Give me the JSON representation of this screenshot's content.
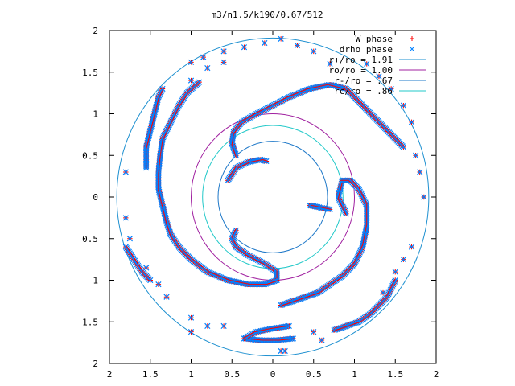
{
  "chart_data": {
    "type": "scatter",
    "title": "m3/n1.5/k190/0.67/512",
    "xlim": [
      -2,
      2
    ],
    "ylim": [
      -2,
      2
    ],
    "x_tick_values": [
      -2,
      -1.5,
      -1,
      -0.5,
      0,
      0.5,
      1,
      1.5,
      2
    ],
    "x_tick_labels": [
      "2",
      "1.5",
      "1",
      "0.5",
      "0",
      "0.5",
      "1",
      "1.5",
      "2"
    ],
    "y_tick_values": [
      2,
      1.5,
      1,
      0.5,
      0,
      -0.5,
      -1,
      -1.5,
      -2
    ],
    "y_tick_labels": [
      "2",
      "1.5",
      "1",
      "0.5",
      "0",
      "0.5",
      "1",
      "1.5",
      "2"
    ],
    "grid": false,
    "legend_position": "top-right",
    "point_series": [
      {
        "name": "W phase",
        "marker": "plus",
        "color": "#ff0000"
      },
      {
        "name": "drho phase",
        "marker": "cross",
        "color": "#0080ff"
      }
    ],
    "circles": [
      {
        "name": "r+/ro = 1.91",
        "radius": 1.91,
        "color": "#1e90d0"
      },
      {
        "name": "ro/ro = 1.00",
        "radius": 1.0,
        "color": "#a020a0"
      },
      {
        "name": "r-/ro = .67",
        "radius": 0.67,
        "color": "#1e78c8"
      },
      {
        "name": "rc/ro = .86",
        "radius": 0.86,
        "color": "#20c8c8"
      }
    ],
    "arms": [
      {
        "points": [
          [
            -0.45,
            0.5
          ],
          [
            -0.5,
            0.65
          ],
          [
            -0.48,
            0.78
          ],
          [
            -0.38,
            0.9
          ],
          [
            -0.2,
            1.0
          ],
          [
            0.0,
            1.1
          ],
          [
            0.2,
            1.2
          ],
          [
            0.45,
            1.3
          ],
          [
            0.7,
            1.35
          ],
          [
            0.9,
            1.3
          ],
          [
            1.05,
            1.15
          ],
          [
            1.2,
            1.0
          ],
          [
            1.35,
            0.85
          ],
          [
            1.5,
            0.7
          ],
          [
            1.6,
            0.6
          ]
        ]
      },
      {
        "points": [
          [
            0.7,
            -0.15
          ],
          [
            0.55,
            -0.12
          ],
          [
            0.45,
            -0.1
          ]
        ]
      },
      {
        "points": [
          [
            0.9,
            -0.2
          ],
          [
            0.8,
            0.0
          ],
          [
            0.85,
            0.2
          ],
          [
            0.95,
            0.2
          ],
          [
            1.05,
            0.1
          ],
          [
            1.15,
            -0.1
          ],
          [
            1.15,
            -0.35
          ],
          [
            1.1,
            -0.6
          ],
          [
            1.0,
            -0.8
          ],
          [
            0.85,
            -0.95
          ],
          [
            0.7,
            -1.05
          ],
          [
            0.55,
            -1.15
          ],
          [
            0.4,
            -1.2
          ],
          [
            0.25,
            -1.25
          ],
          [
            0.1,
            -1.3
          ]
        ]
      },
      {
        "points": [
          [
            0.25,
            -1.7
          ],
          [
            0.05,
            -1.72
          ],
          [
            -0.15,
            -1.72
          ],
          [
            -0.35,
            -1.7
          ]
        ]
      },
      {
        "points": [
          [
            -0.35,
            -1.7
          ],
          [
            -0.2,
            -1.62
          ],
          [
            0.0,
            -1.58
          ],
          [
            0.2,
            -1.55
          ]
        ]
      },
      {
        "points": [
          [
            -1.55,
            0.35
          ],
          [
            -1.55,
            0.6
          ],
          [
            -1.5,
            0.8
          ],
          [
            -1.45,
            1.0
          ],
          [
            -1.4,
            1.2
          ],
          [
            -1.35,
            1.3
          ]
        ]
      },
      {
        "points": [
          [
            -0.08,
            0.43
          ],
          [
            -0.15,
            0.45
          ],
          [
            -0.3,
            0.42
          ],
          [
            -0.45,
            0.35
          ],
          [
            -0.55,
            0.2
          ]
        ]
      },
      {
        "points": [
          [
            -0.45,
            -0.4
          ],
          [
            -0.5,
            -0.5
          ],
          [
            -0.45,
            -0.6
          ],
          [
            -0.3,
            -0.7
          ],
          [
            -0.1,
            -0.8
          ],
          [
            0.05,
            -0.9
          ],
          [
            0.05,
            -1.0
          ]
        ]
      },
      {
        "points": [
          [
            0.05,
            -1.0
          ],
          [
            -0.1,
            -1.05
          ],
          [
            -0.3,
            -1.05
          ],
          [
            -0.55,
            -1.0
          ],
          [
            -0.8,
            -0.9
          ],
          [
            -1.0,
            -0.75
          ],
          [
            -1.15,
            -0.6
          ],
          [
            -1.25,
            -0.45
          ],
          [
            -1.3,
            -0.3
          ],
          [
            -1.35,
            -0.1
          ],
          [
            -1.4,
            0.1
          ],
          [
            -1.4,
            0.3
          ],
          [
            -1.38,
            0.5
          ],
          [
            -1.35,
            0.7
          ],
          [
            -1.25,
            0.9
          ],
          [
            -1.15,
            1.1
          ],
          [
            -1.05,
            1.25
          ],
          [
            -0.9,
            1.38
          ]
        ]
      },
      {
        "points": [
          [
            -1.8,
            -0.6
          ],
          [
            -1.7,
            -0.75
          ],
          [
            -1.6,
            -0.9
          ],
          [
            -1.5,
            -1.0
          ]
        ]
      },
      {
        "points": [
          [
            1.5,
            -1.0
          ],
          [
            1.45,
            -1.1
          ],
          [
            1.4,
            -1.2
          ],
          [
            1.3,
            -1.3
          ],
          [
            1.2,
            -1.4
          ],
          [
            1.05,
            -1.5
          ],
          [
            0.9,
            -1.55
          ],
          [
            0.75,
            -1.6
          ]
        ]
      }
    ],
    "scattered_points": [
      [
        0.1,
        1.9
      ],
      [
        -0.1,
        1.85
      ],
      [
        -0.35,
        1.8
      ],
      [
        -0.6,
        1.75
      ],
      [
        -0.85,
        1.68
      ],
      [
        -1.0,
        1.62
      ],
      [
        -1.0,
        1.4
      ],
      [
        -0.8,
        1.55
      ],
      [
        -0.6,
        1.62
      ],
      [
        -1.8,
        0.3
      ],
      [
        -1.8,
        -0.25
      ],
      [
        -1.75,
        -0.5
      ],
      [
        -1.55,
        -0.85
      ],
      [
        -1.4,
        -1.05
      ],
      [
        -1.3,
        -1.2
      ],
      [
        -1.0,
        -1.45
      ],
      [
        -1.0,
        -1.62
      ],
      [
        -0.8,
        -1.55
      ],
      [
        -0.6,
        -1.55
      ],
      [
        1.85,
        0.0
      ],
      [
        1.8,
        0.3
      ],
      [
        1.75,
        0.5
      ],
      [
        1.7,
        0.9
      ],
      [
        1.6,
        1.1
      ],
      [
        1.45,
        1.3
      ],
      [
        1.3,
        1.45
      ],
      [
        1.15,
        1.6
      ],
      [
        1.7,
        -0.6
      ],
      [
        1.6,
        -0.75
      ],
      [
        1.5,
        -0.9
      ],
      [
        1.35,
        -1.15
      ],
      [
        0.15,
        -1.85
      ],
      [
        0.1,
        -1.85
      ],
      [
        0.6,
        -1.72
      ],
      [
        0.5,
        -1.62
      ],
      [
        0.7,
        1.6
      ],
      [
        0.5,
        1.75
      ],
      [
        0.3,
        1.82
      ]
    ]
  }
}
